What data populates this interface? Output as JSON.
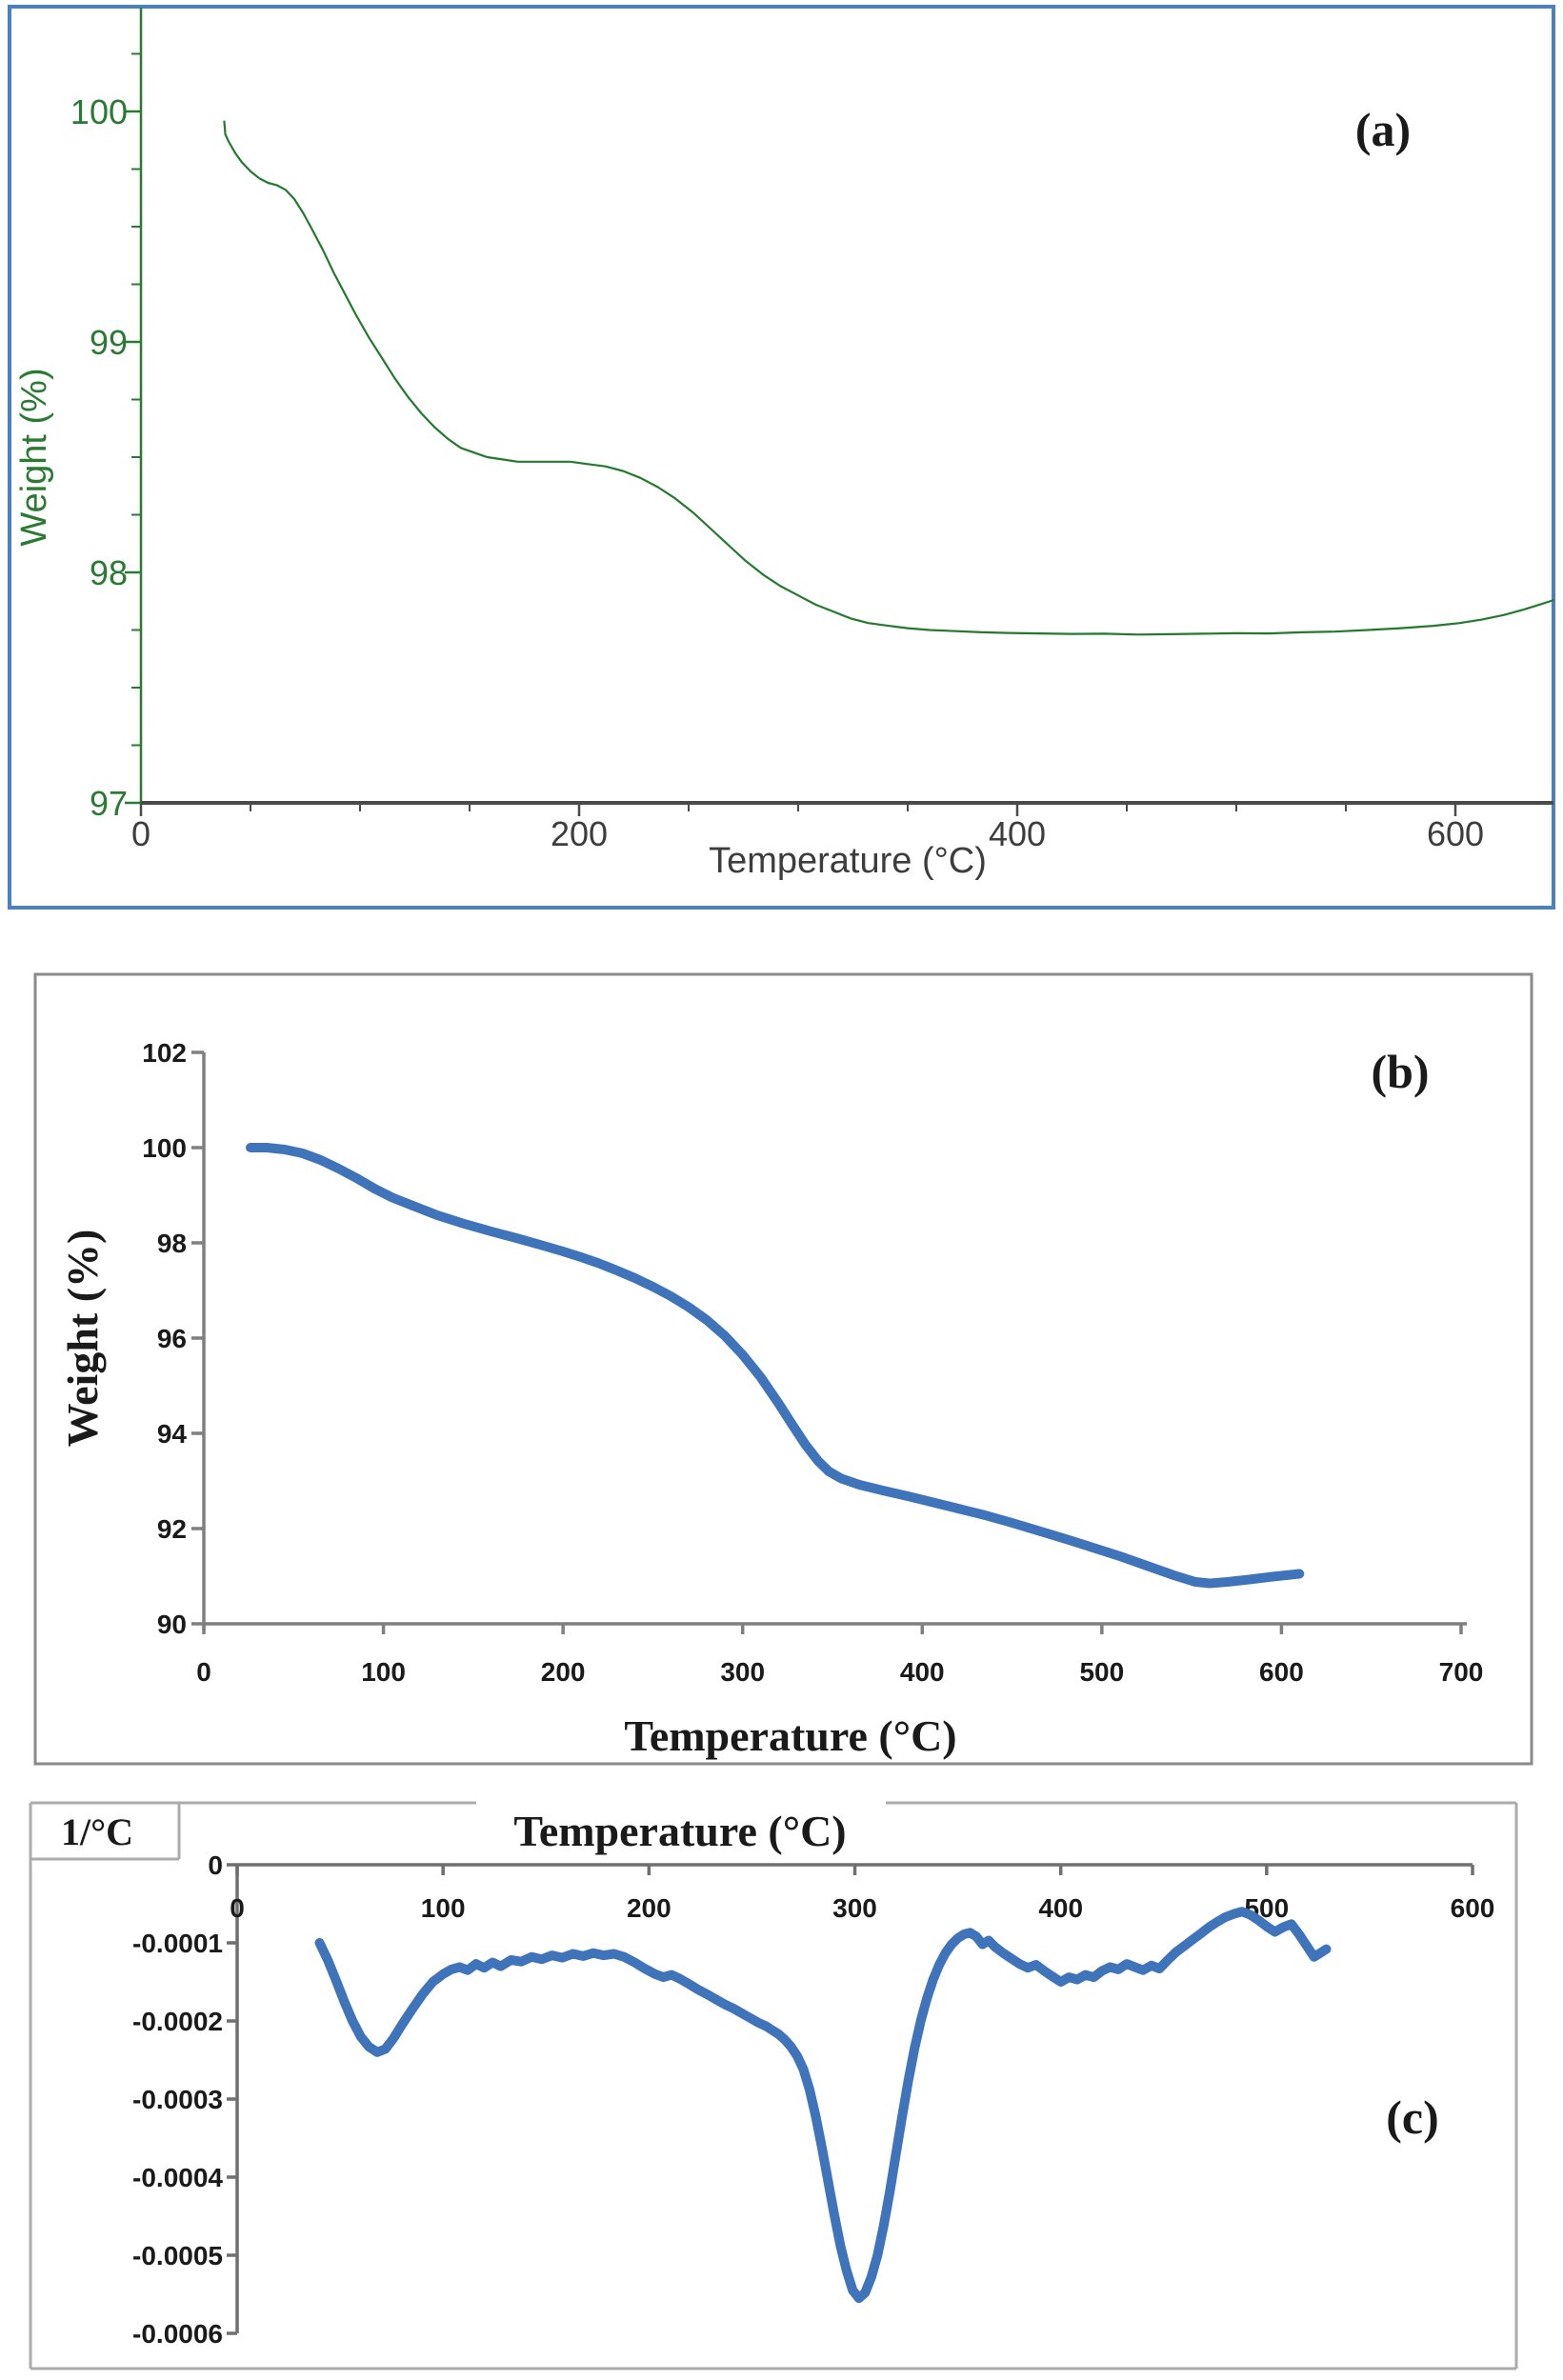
{
  "figure_title": "",
  "chart_data": [
    {
      "id": "a",
      "type": "line",
      "panel_label": "(a)",
      "xlabel": "Temperature (°C)",
      "ylabel": "Weight (%)",
      "xlim": [
        0,
        650
      ],
      "ylim": [
        97,
        100.5
      ],
      "legend": "none",
      "grid": false,
      "colors": {
        "line": "#237a2f",
        "axis_x": "#4a4a4a",
        "axis_y": "#2b7a33",
        "tick_text_x": "#3d3d3d",
        "tick_text_y": "#2b7a33",
        "panel_border": "#4a80c4",
        "letter": "#1a1a1a"
      },
      "x_ticks": {
        "values": [
          0,
          200,
          400,
          600
        ],
        "labels": [
          "0",
          "200",
          "400",
          "600"
        ],
        "minor": [
          50,
          100,
          150,
          250,
          300,
          350,
          450,
          500,
          550
        ]
      },
      "y_ticks": {
        "values": [
          97,
          98,
          99,
          100
        ],
        "labels": [
          "97",
          "98",
          "99",
          "100"
        ],
        "minor": [
          97.25,
          97.5,
          97.75,
          98.25,
          98.5,
          98.75,
          99.25,
          99.5,
          99.75,
          100.25
        ]
      },
      "series": [
        [
          38,
          99.96
        ],
        [
          38.5,
          99.9
        ],
        [
          40,
          99.87
        ],
        [
          43,
          99.82
        ],
        [
          46,
          99.78
        ],
        [
          50,
          99.74
        ],
        [
          54,
          99.71
        ],
        [
          58,
          99.69
        ],
        [
          62,
          99.68
        ],
        [
          66,
          99.66
        ],
        [
          70,
          99.62
        ],
        [
          74,
          99.56
        ],
        [
          78,
          99.49
        ],
        [
          83,
          99.4
        ],
        [
          88,
          99.3
        ],
        [
          93,
          99.21
        ],
        [
          98,
          99.12
        ],
        [
          104,
          99.02
        ],
        [
          110,
          98.93
        ],
        [
          116,
          98.84
        ],
        [
          122,
          98.76
        ],
        [
          128,
          98.69
        ],
        [
          134,
          98.63
        ],
        [
          140,
          98.58
        ],
        [
          146,
          98.54
        ],
        [
          152,
          98.52
        ],
        [
          158,
          98.5
        ],
        [
          165,
          98.49
        ],
        [
          172,
          98.48
        ],
        [
          180,
          98.48
        ],
        [
          188,
          98.48
        ],
        [
          196,
          98.48
        ],
        [
          204,
          98.47
        ],
        [
          212,
          98.46
        ],
        [
          220,
          98.44
        ],
        [
          228,
          98.41
        ],
        [
          236,
          98.37
        ],
        [
          244,
          98.32
        ],
        [
          252,
          98.26
        ],
        [
          260,
          98.19
        ],
        [
          268,
          98.12
        ],
        [
          276,
          98.05
        ],
        [
          284,
          97.99
        ],
        [
          292,
          97.94
        ],
        [
          300,
          97.9
        ],
        [
          308,
          97.86
        ],
        [
          316,
          97.83
        ],
        [
          324,
          97.8
        ],
        [
          332,
          97.78
        ],
        [
          340,
          97.77
        ],
        [
          350,
          97.758
        ],
        [
          360,
          97.75
        ],
        [
          372,
          97.745
        ],
        [
          384,
          97.74
        ],
        [
          396,
          97.737
        ],
        [
          410,
          97.735
        ],
        [
          425,
          97.733
        ],
        [
          440,
          97.734
        ],
        [
          455,
          97.73
        ],
        [
          470,
          97.732
        ],
        [
          485,
          97.734
        ],
        [
          500,
          97.736
        ],
        [
          515,
          97.735
        ],
        [
          530,
          97.74
        ],
        [
          545,
          97.743
        ],
        [
          560,
          97.75
        ],
        [
          575,
          97.758
        ],
        [
          590,
          97.768
        ],
        [
          602,
          97.78
        ],
        [
          612,
          97.795
        ],
        [
          622,
          97.815
        ],
        [
          631,
          97.838
        ],
        [
          639,
          97.862
        ],
        [
          645,
          97.88
        ]
      ]
    },
    {
      "id": "b",
      "type": "line",
      "panel_label": "(b)",
      "xlabel": "Temperature (°C)",
      "ylabel": "Weight (%)",
      "xlim": [
        0,
        700
      ],
      "ylim": [
        90,
        102
      ],
      "legend": "none",
      "grid": false,
      "colors": {
        "line": "#3f73ba",
        "axis_x": "#7f7f7f",
        "axis_y": "#7f7f7f",
        "tick_text_x": "#1a1a1a",
        "tick_text_y": "#1a1a1a",
        "panel_border": "#8a8a8a",
        "letter": "#1a1a1a"
      },
      "x_ticks": {
        "values": [
          0,
          100,
          200,
          300,
          400,
          500,
          600,
          700
        ],
        "labels": [
          "0",
          "100",
          "200",
          "300",
          "400",
          "500",
          "600",
          "700"
        ],
        "minor": []
      },
      "y_ticks": {
        "values": [
          90,
          92,
          94,
          96,
          98,
          100,
          102
        ],
        "labels": [
          "90",
          "92",
          "94",
          "96",
          "98",
          "100",
          "102"
        ],
        "minor": []
      },
      "series": [
        [
          26,
          100.0
        ],
        [
          35,
          100.0
        ],
        [
          45,
          99.96
        ],
        [
          55,
          99.88
        ],
        [
          65,
          99.74
        ],
        [
          75,
          99.56
        ],
        [
          85,
          99.36
        ],
        [
          95,
          99.14
        ],
        [
          105,
          98.95
        ],
        [
          115,
          98.8
        ],
        [
          130,
          98.58
        ],
        [
          145,
          98.4
        ],
        [
          160,
          98.24
        ],
        [
          175,
          98.09
        ],
        [
          190,
          97.93
        ],
        [
          200,
          97.82
        ],
        [
          210,
          97.7
        ],
        [
          220,
          97.57
        ],
        [
          230,
          97.42
        ],
        [
          240,
          97.26
        ],
        [
          250,
          97.08
        ],
        [
          260,
          96.88
        ],
        [
          270,
          96.65
        ],
        [
          280,
          96.38
        ],
        [
          290,
          96.05
        ],
        [
          300,
          95.65
        ],
        [
          310,
          95.18
        ],
        [
          320,
          94.63
        ],
        [
          328,
          94.16
        ],
        [
          335,
          93.76
        ],
        [
          342,
          93.42
        ],
        [
          348,
          93.2
        ],
        [
          355,
          93.05
        ],
        [
          365,
          92.92
        ],
        [
          378,
          92.8
        ],
        [
          392,
          92.68
        ],
        [
          406,
          92.55
        ],
        [
          420,
          92.42
        ],
        [
          435,
          92.28
        ],
        [
          450,
          92.12
        ],
        [
          465,
          91.95
        ],
        [
          480,
          91.78
        ],
        [
          495,
          91.6
        ],
        [
          510,
          91.42
        ],
        [
          525,
          91.22
        ],
        [
          540,
          91.02
        ],
        [
          552,
          90.88
        ],
        [
          560,
          90.85
        ],
        [
          570,
          90.88
        ],
        [
          582,
          90.93
        ],
        [
          595,
          90.99
        ],
        [
          610,
          91.05
        ]
      ]
    },
    {
      "id": "c",
      "type": "line",
      "panel_label": "(c)",
      "xlabel": "Temperature (°C)",
      "ylabel": "1/°C",
      "corner_label": "1/°C",
      "xlim": [
        0,
        620
      ],
      "ylim": [
        -0.0006,
        0
      ],
      "legend": "none",
      "grid": false,
      "colors": {
        "line": "#3f73ba",
        "axis_x": "#6f6f6f",
        "axis_y": "#6f6f6f",
        "tick_text_x": "#1a1a1a",
        "tick_text_y": "#1a1a1a",
        "panel_border": "#ababab",
        "letter": "#1a1a1a"
      },
      "x_ticks": {
        "values": [
          0,
          100,
          200,
          300,
          400,
          500,
          600
        ],
        "labels": [
          "0",
          "100",
          "200",
          "300",
          "400",
          "500",
          "600"
        ],
        "minor": []
      },
      "y_ticks": {
        "values": [
          0,
          -0.0001,
          -0.0002,
          -0.0003,
          -0.0004,
          -0.0005,
          -0.0006
        ],
        "labels": [
          "0",
          "-0.0001",
          "-0.0002",
          "-0.0003",
          "-0.0004",
          "-0.0005",
          "-0.0006"
        ],
        "minor": []
      },
      "series": [
        [
          40,
          -0.0001
        ],
        [
          44,
          -0.000122
        ],
        [
          48,
          -0.000148
        ],
        [
          52,
          -0.000175
        ],
        [
          56,
          -0.0002
        ],
        [
          60,
          -0.00022
        ],
        [
          64,
          -0.000233
        ],
        [
          68,
          -0.00024
        ],
        [
          72,
          -0.000236
        ],
        [
          76,
          -0.000222
        ],
        [
          80,
          -0.000205
        ],
        [
          85,
          -0.000185
        ],
        [
          90,
          -0.000166
        ],
        [
          95,
          -0.00015
        ],
        [
          100,
          -0.00014
        ],
        [
          104,
          -0.000134
        ],
        [
          108,
          -0.000131
        ],
        [
          112,
          -0.000135
        ],
        [
          116,
          -0.000127
        ],
        [
          120,
          -0.000132
        ],
        [
          124,
          -0.000125
        ],
        [
          128,
          -0.00013
        ],
        [
          133,
          -0.000122
        ],
        [
          138,
          -0.000124
        ],
        [
          143,
          -0.000118
        ],
        [
          148,
          -0.000121
        ],
        [
          153,
          -0.000116
        ],
        [
          158,
          -0.000119
        ],
        [
          163,
          -0.000114
        ],
        [
          168,
          -0.000117
        ],
        [
          173,
          -0.000113
        ],
        [
          178,
          -0.000116
        ],
        [
          183,
          -0.000114
        ],
        [
          188,
          -0.000118
        ],
        [
          193,
          -0.000125
        ],
        [
          198,
          -0.000133
        ],
        [
          203,
          -0.00014
        ],
        [
          207,
          -0.000144
        ],
        [
          211,
          -0.000141
        ],
        [
          215,
          -0.000146
        ],
        [
          219,
          -0.000152
        ],
        [
          224,
          -0.00016
        ],
        [
          229,
          -0.000167
        ],
        [
          233,
          -0.000173
        ],
        [
          237,
          -0.000179
        ],
        [
          241,
          -0.000184
        ],
        [
          245,
          -0.00019
        ],
        [
          249,
          -0.000196
        ],
        [
          253,
          -0.000202
        ],
        [
          257,
          -0.000207
        ],
        [
          260,
          -0.000212
        ],
        [
          263,
          -0.000217
        ],
        [
          266,
          -0.000224
        ],
        [
          269,
          -0.000233
        ],
        [
          272,
          -0.000245
        ],
        [
          275,
          -0.000262
        ],
        [
          278,
          -0.000288
        ],
        [
          281,
          -0.000322
        ],
        [
          284,
          -0.000362
        ],
        [
          287,
          -0.000405
        ],
        [
          290,
          -0.000448
        ],
        [
          293,
          -0.000488
        ],
        [
          296,
          -0.00052
        ],
        [
          299,
          -0.000545
        ],
        [
          302,
          -0.000555
        ],
        [
          305,
          -0.000548
        ],
        [
          308,
          -0.000528
        ],
        [
          311,
          -0.0005
        ],
        [
          314,
          -0.000462
        ],
        [
          317,
          -0.000418
        ],
        [
          320,
          -0.00037
        ],
        [
          323,
          -0.000322
        ],
        [
          326,
          -0.000276
        ],
        [
          329,
          -0.000235
        ],
        [
          332,
          -0.0002
        ],
        [
          335,
          -0.000171
        ],
        [
          338,
          -0.000147
        ],
        [
          341,
          -0.000128
        ],
        [
          344,
          -0.000113
        ],
        [
          347,
          -0.000102
        ],
        [
          350,
          -9.4e-05
        ],
        [
          353,
          -8.9e-05
        ],
        [
          356,
          -8.7e-05
        ],
        [
          359,
          -9.2e-05
        ],
        [
          362,
          -0.000102
        ],
        [
          365,
          -9.7e-05
        ],
        [
          368,
          -0.000105
        ],
        [
          372,
          -0.000113
        ],
        [
          376,
          -0.00012
        ],
        [
          380,
          -0.000127
        ],
        [
          384,
          -0.000132
        ],
        [
          388,
          -0.000128
        ],
        [
          392,
          -0.000136
        ],
        [
          396,
          -0.000143
        ],
        [
          400,
          -0.00015
        ],
        [
          404,
          -0.000144
        ],
        [
          408,
          -0.000147
        ],
        [
          412,
          -0.000141
        ],
        [
          416,
          -0.000144
        ],
        [
          420,
          -0.000136
        ],
        [
          424,
          -0.000131
        ],
        [
          428,
          -0.000134
        ],
        [
          432,
          -0.000127
        ],
        [
          436,
          -0.000131
        ],
        [
          440,
          -0.000135
        ],
        [
          444,
          -0.000129
        ],
        [
          448,
          -0.000133
        ],
        [
          452,
          -0.000122
        ],
        [
          456,
          -0.000112
        ],
        [
          460,
          -0.000104
        ],
        [
          464,
          -9.6e-05
        ],
        [
          468,
          -8.8e-05
        ],
        [
          472,
          -8e-05
        ],
        [
          476,
          -7.3e-05
        ],
        [
          480,
          -6.7e-05
        ],
        [
          484,
          -6.3e-05
        ],
        [
          488,
          -6e-05
        ],
        [
          492,
          -6.4e-05
        ],
        [
          496,
          -7.1e-05
        ],
        [
          500,
          -7.9e-05
        ],
        [
          504,
          -8.6e-05
        ],
        [
          508,
          -8e-05
        ],
        [
          512,
          -7.6e-05
        ],
        [
          516,
          -9e-05
        ],
        [
          520,
          -0.000106
        ],
        [
          523,
          -0.000118
        ],
        [
          526,
          -0.000113
        ],
        [
          529,
          -0.000108
        ]
      ]
    }
  ]
}
